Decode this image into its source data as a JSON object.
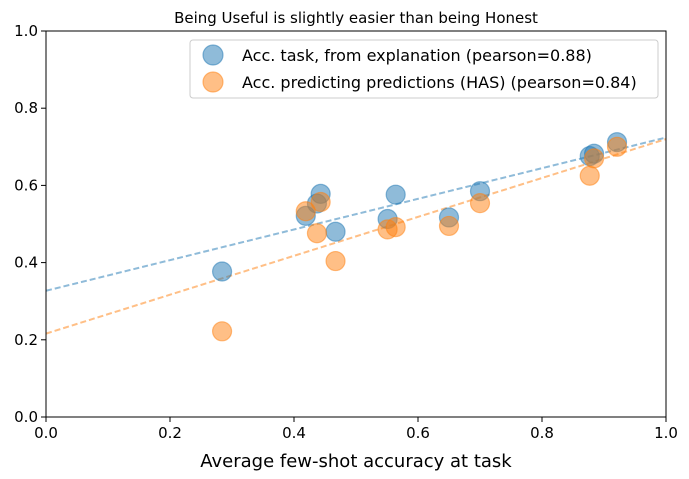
{
  "chart_data": {
    "type": "scatter",
    "title": "Being Useful is slightly easier than being Honest",
    "xlabel": "Average few-shot accuracy at task",
    "ylabel": "",
    "xlim": [
      0,
      1
    ],
    "ylim": [
      0,
      1
    ],
    "xticks": [
      "0.0",
      "0.2",
      "0.4",
      "0.6",
      "0.8",
      "1.0"
    ],
    "yticks": [
      "0.0",
      "0.2",
      "0.4",
      "0.6",
      "0.8",
      "1.0"
    ],
    "grid": false,
    "legend_position": "top-right",
    "series": [
      {
        "name": "Acc. task, from explanation (pearson=0.88)",
        "color": "#1f77b4",
        "points": [
          [
            0.284,
            0.377
          ],
          [
            0.419,
            0.521
          ],
          [
            0.437,
            0.553
          ],
          [
            0.443,
            0.578
          ],
          [
            0.467,
            0.48
          ],
          [
            0.551,
            0.513
          ],
          [
            0.564,
            0.576
          ],
          [
            0.65,
            0.517
          ],
          [
            0.7,
            0.585
          ],
          [
            0.877,
            0.676
          ],
          [
            0.884,
            0.682
          ],
          [
            0.921,
            0.712
          ]
        ],
        "fit_line": [
          [
            0.0,
            0.327
          ],
          [
            1.0,
            0.724
          ]
        ]
      },
      {
        "name": "Acc. predicting predictions (HAS) (pearson=0.84)",
        "color": "#ff7f0e",
        "points": [
          [
            0.284,
            0.222
          ],
          [
            0.419,
            0.533
          ],
          [
            0.437,
            0.476
          ],
          [
            0.443,
            0.557
          ],
          [
            0.467,
            0.404
          ],
          [
            0.551,
            0.486
          ],
          [
            0.564,
            0.492
          ],
          [
            0.65,
            0.495
          ],
          [
            0.7,
            0.554
          ],
          [
            0.877,
            0.625
          ],
          [
            0.884,
            0.67
          ],
          [
            0.921,
            0.7
          ]
        ],
        "fit_line": [
          [
            0.0,
            0.216
          ],
          [
            1.0,
            0.72
          ]
        ]
      }
    ]
  }
}
